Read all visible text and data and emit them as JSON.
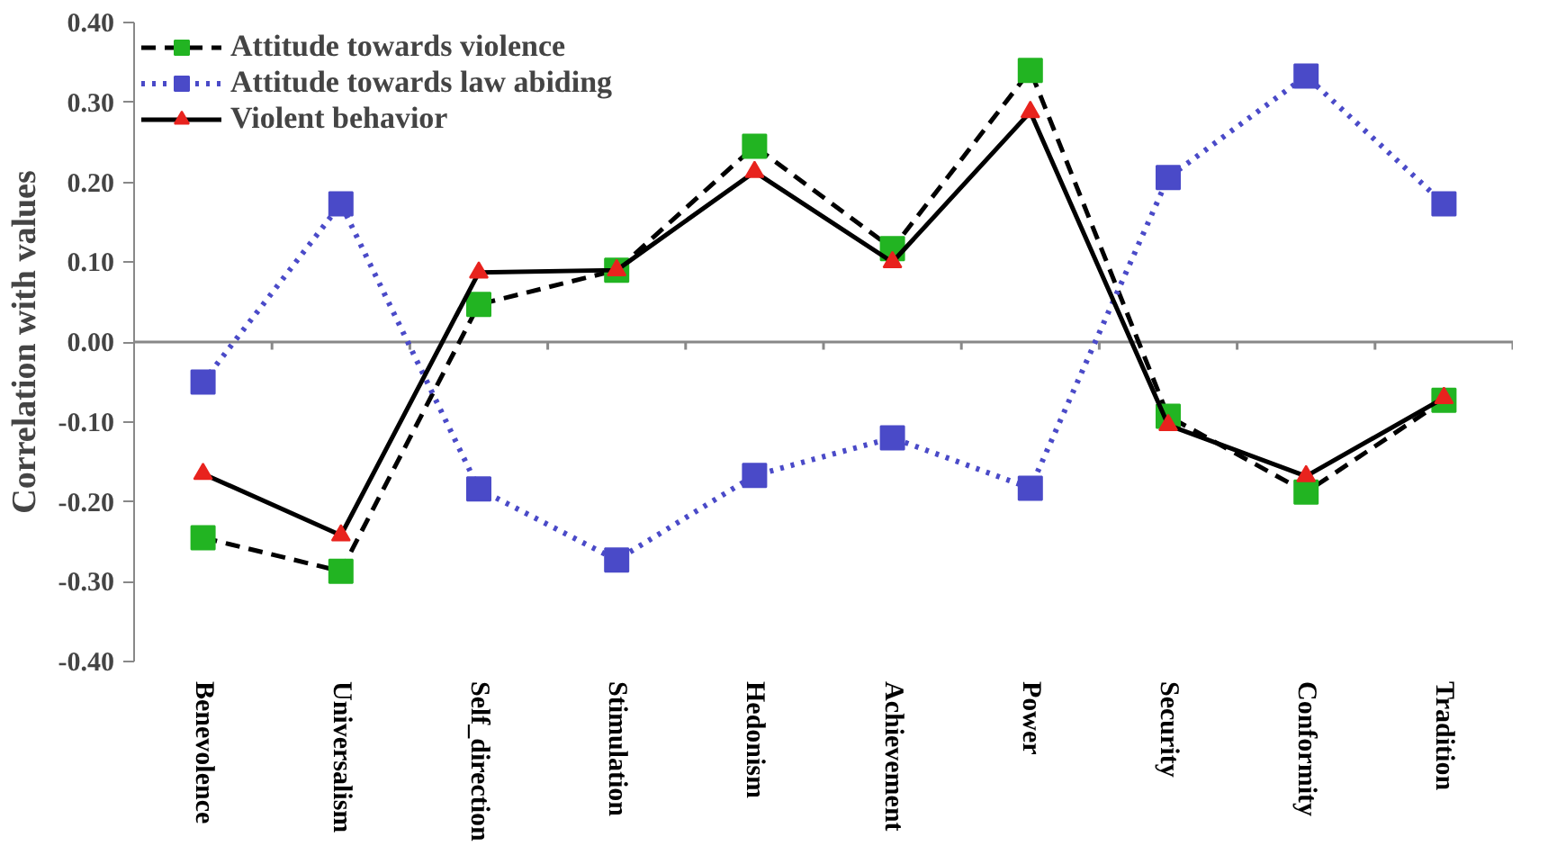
{
  "chart_data": {
    "type": "line",
    "ylabel": "Correlation with values",
    "categories": [
      "Benevolence",
      "Universalism",
      "Self_direction",
      "Stimulation",
      "Hedonism",
      "Achievement",
      "Power",
      "Security",
      "Conformity",
      "Tradition"
    ],
    "series": [
      {
        "name": "Attitude towards violence",
        "color": "#000000",
        "marker": "square",
        "colors": [
          "#22b422",
          "#22b422",
          "#22b422",
          "#22b422",
          "#22b422",
          "#22b422",
          "#22b422",
          "#22b422",
          "#22b422",
          "#22b422"
        ],
        "line_style": "dashed",
        "values": [
          -0.245,
          -0.287,
          0.047,
          0.09,
          0.245,
          0.117,
          0.34,
          -0.093,
          -0.188,
          -0.073
        ]
      },
      {
        "name": "Attitude towards law abiding",
        "color": "#4a4ac8",
        "marker": "square",
        "colors": [
          "#4a4ac8",
          "#4a4ac8",
          "#4a4ac8",
          "#4a4ac8",
          "#4a4ac8",
          "#4a4ac8",
          "#4a4ac8",
          "#4a4ac8",
          "#4a4ac8",
          "#4a4ac8"
        ],
        "line_style": "dotted",
        "values": [
          -0.05,
          0.173,
          -0.184,
          -0.273,
          -0.167,
          -0.12,
          -0.183,
          0.206,
          0.333,
          0.173
        ]
      },
      {
        "name": "Violent behavior",
        "color": "#000000",
        "marker": "triangle",
        "colors": [
          "#e8231e",
          "#e8231e",
          "#e8231e",
          "#e8231e",
          "#e8231e",
          "#e8231e",
          "#e8231e",
          "#e8231e",
          "#e8231e",
          "#e8231e"
        ],
        "line_style": "solid",
        "values": [
          -0.165,
          -0.242,
          0.087,
          0.09,
          0.213,
          0.1,
          0.288,
          -0.104,
          -0.168,
          -0.07
        ]
      }
    ],
    "ylim": [
      -0.4,
      0.4
    ],
    "yticks": [
      {
        "value": -0.4,
        "label": "-0.40"
      },
      {
        "value": -0.3,
        "label": "-0.30"
      },
      {
        "value": -0.2,
        "label": "-0.20"
      },
      {
        "value": -0.1,
        "label": "-0.10"
      },
      {
        "value": 0,
        "label": "0.00"
      },
      {
        "value": 0.1,
        "label": "0.10"
      },
      {
        "value": 0.2,
        "label": "0.20"
      },
      {
        "value": 0.3,
        "label": "0.30"
      },
      {
        "value": 0.4,
        "label": "0.40"
      }
    ],
    "legend": "top left"
  }
}
